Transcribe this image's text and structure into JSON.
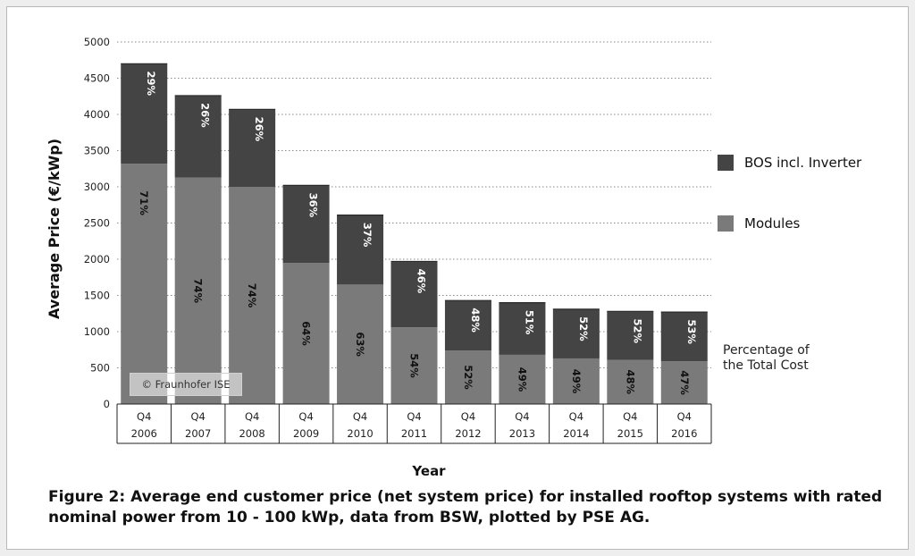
{
  "chart_data": {
    "type": "bar",
    "stacked": true,
    "categories": [
      "Q4 2006",
      "Q4 2007",
      "Q4 2008",
      "Q4 2009",
      "Q4 2010",
      "Q4 2011",
      "Q4 2012",
      "Q4 2013",
      "Q4 2014",
      "Q4 2015",
      "Q4 2016"
    ],
    "category_quarters": [
      "Q4",
      "Q4",
      "Q4",
      "Q4",
      "Q4",
      "Q4",
      "Q4",
      "Q4",
      "Q4",
      "Q4",
      "Q4"
    ],
    "category_years": [
      "2006",
      "2007",
      "2008",
      "2009",
      "2010",
      "2011",
      "2012",
      "2013",
      "2014",
      "2015",
      "2016"
    ],
    "series": [
      {
        "name": "Modules",
        "values": [
          3320,
          3130,
          3000,
          1950,
          1650,
          1060,
          740,
          680,
          630,
          610,
          590
        ],
        "labels": [
          "71%",
          "74%",
          "74%",
          "64%",
          "63%",
          "54%",
          "52%",
          "49%",
          "49%",
          "48%",
          "47%"
        ],
        "color": "#7a7a7a"
      },
      {
        "name": "BOS incl. Inverter",
        "values": [
          1380,
          1130,
          1070,
          1070,
          960,
          910,
          690,
          720,
          680,
          670,
          680
        ],
        "labels": [
          "29%",
          "26%",
          "26%",
          "36%",
          "37%",
          "46%",
          "48%",
          "51%",
          "52%",
          "52%",
          "53%"
        ],
        "color": "#444444"
      }
    ],
    "ylabel": "Average Price (€/kWp)",
    "xlabel": "Year",
    "ylim": [
      0,
      5000
    ],
    "yticks": [
      "0",
      "500",
      "1000",
      "1500",
      "2000",
      "2500",
      "3000",
      "3500",
      "4000",
      "4500",
      "5000"
    ],
    "grid": "horizontal-dotted",
    "legend_position": "right"
  },
  "legend": [
    {
      "label": "BOS incl. Inverter",
      "color": "#444444"
    },
    {
      "label": "Modules",
      "color": "#7a7a7a"
    }
  ],
  "percentage_note": [
    "Percentage of",
    "the Total Cost"
  ],
  "credit": "© Fraunhofer ISE",
  "caption": "Figure 2: Average end customer price (net system price) for installed rooftop systems with rated nominal power from 10 - 100 kWp, data from BSW, plotted by PSE AG."
}
